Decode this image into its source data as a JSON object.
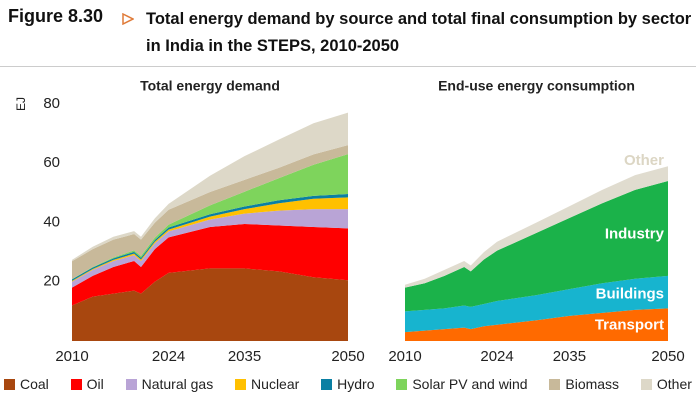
{
  "header": {
    "label": "Figure 8.30",
    "title": "Total energy demand by source and total final consumption by sector in India in the STEPS, 2010-2050"
  },
  "chart_data": [
    {
      "type": "area",
      "stacked": true,
      "title": "Total energy demand",
      "ylabel": "EJ",
      "legend": true,
      "x": [
        2010,
        2013,
        2016,
        2019,
        2020,
        2022,
        2024,
        2030,
        2035,
        2040,
        2045,
        2050
      ],
      "xlim": [
        2010,
        2050
      ],
      "xticks": [
        2010,
        2024,
        2035,
        2050
      ],
      "ylim": [
        0,
        80
      ],
      "yticks": [
        20,
        40,
        60,
        80
      ],
      "series": [
        {
          "name": "Coal",
          "color": "#a8470f",
          "values": [
            12,
            15,
            16,
            17,
            16,
            20,
            23,
            24.5,
            24.5,
            23.5,
            21.5,
            20.5
          ]
        },
        {
          "name": "Oil",
          "color": "#ff0000",
          "values": [
            6,
            7,
            9,
            10,
            9,
            11,
            12,
            14,
            15,
            15.5,
            17,
            17.5
          ]
        },
        {
          "name": "Natural gas",
          "color": "#b9a4d6",
          "values": [
            2,
            2,
            2,
            2,
            2,
            2,
            2,
            2.5,
            3.5,
            5,
            6,
            6.5
          ]
        },
        {
          "name": "Nuclear",
          "color": "#ffc000",
          "values": [
            0.3,
            0.3,
            0.4,
            0.5,
            0.5,
            0.5,
            0.6,
            1,
            1.5,
            2.5,
            3.5,
            4
          ]
        },
        {
          "name": "Hydro",
          "color": "#0a7fa3",
          "values": [
            0.5,
            0.5,
            0.5,
            0.6,
            0.6,
            0.6,
            0.7,
            0.8,
            0.9,
            1,
            1,
            1.1
          ]
        },
        {
          "name": "Solar PV and wind",
          "color": "#7ed45c",
          "values": [
            0.1,
            0.2,
            0.3,
            0.5,
            0.6,
            0.8,
            1,
            3,
            5,
            7.5,
            10.5,
            13.5
          ]
        },
        {
          "name": "Biomass",
          "color": "#c8b99a",
          "values": [
            6,
            6,
            6,
            5.5,
            5.5,
            5,
            5,
            4.5,
            4,
            3.5,
            3.5,
            3
          ]
        },
        {
          "name": "Other",
          "color": "#ddd8c8",
          "values": [
            0.5,
            0.8,
            1,
            1,
            1,
            1.5,
            2,
            5.5,
            8,
            9.5,
            10.5,
            11
          ]
        }
      ]
    },
    {
      "type": "area",
      "stacked": true,
      "title": "End-use energy consumption",
      "legend": false,
      "x": [
        2010,
        2013,
        2016,
        2019,
        2020,
        2022,
        2024,
        2030,
        2035,
        2040,
        2045,
        2050
      ],
      "xlim": [
        2010,
        2050
      ],
      "xticks": [
        2010,
        2024,
        2035,
        2050
      ],
      "ylim": [
        0,
        80
      ],
      "series": [
        {
          "name": "Transport",
          "color": "#ff6a00",
          "label_color": "#ffffff",
          "values": [
            3,
            3.5,
            4,
            4.5,
            4,
            5,
            5.5,
            7,
            8.5,
            9.5,
            10.5,
            11
          ]
        },
        {
          "name": "Buildings",
          "color": "#17b4cf",
          "label_color": "#ffffff",
          "values": [
            7,
            7,
            7,
            7.5,
            7.5,
            7.5,
            8,
            8.5,
            9,
            10,
            10.5,
            11
          ]
        },
        {
          "name": "Industry",
          "color": "#1bb24a",
          "label_color": "#ffffff",
          "values": [
            8,
            9,
            11,
            13,
            12,
            15,
            17,
            21,
            24,
            27,
            30,
            32
          ]
        },
        {
          "name": "Other",
          "color": "#e0dccf",
          "label_color": "#dcd6c4",
          "values": [
            1,
            1.5,
            2,
            2,
            2,
            2.5,
            3,
            3.5,
            4,
            4.5,
            5,
            5
          ]
        }
      ]
    }
  ]
}
